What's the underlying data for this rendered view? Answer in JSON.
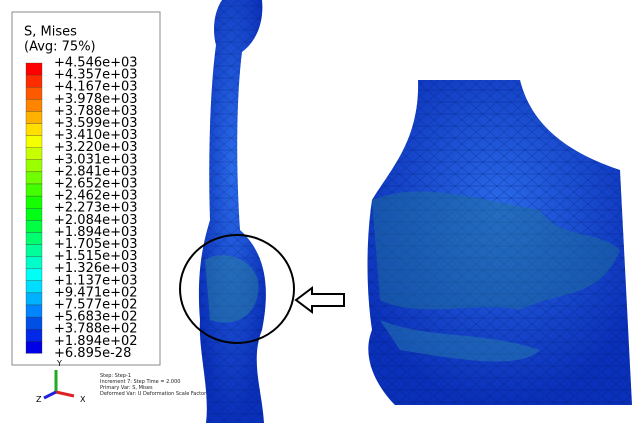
{
  "legend": {
    "title": "S, Mises",
    "subtitle": "(Avg: 75%)",
    "labels": [
      "+4.546e+03",
      "+4.357e+03",
      "+4.167e+03",
      "+3.978e+03",
      "+3.788e+03",
      "+3.599e+03",
      "+3.410e+03",
      "+3.220e+03",
      "+3.031e+03",
      "+2.841e+03",
      "+2.652e+03",
      "+2.462e+03",
      "+2.273e+03",
      "+2.084e+03",
      "+1.894e+03",
      "+1.705e+03",
      "+1.515e+03",
      "+1.326e+03",
      "+1.137e+03",
      "+9.471e+02",
      "+7.577e+02",
      "+5.683e+02",
      "+3.788e+02",
      "+1.894e+02",
      "+6.895e-28"
    ]
  },
  "status": {
    "lines": [
      "Step: Step-1",
      "Increment 7: Step Time = 2.000",
      "Primary Var: S, Mises",
      "Deformed Var: U  Deformation Scale Factor"
    ]
  },
  "triad": {
    "y": "Y",
    "z": "Z",
    "x": "X"
  }
}
